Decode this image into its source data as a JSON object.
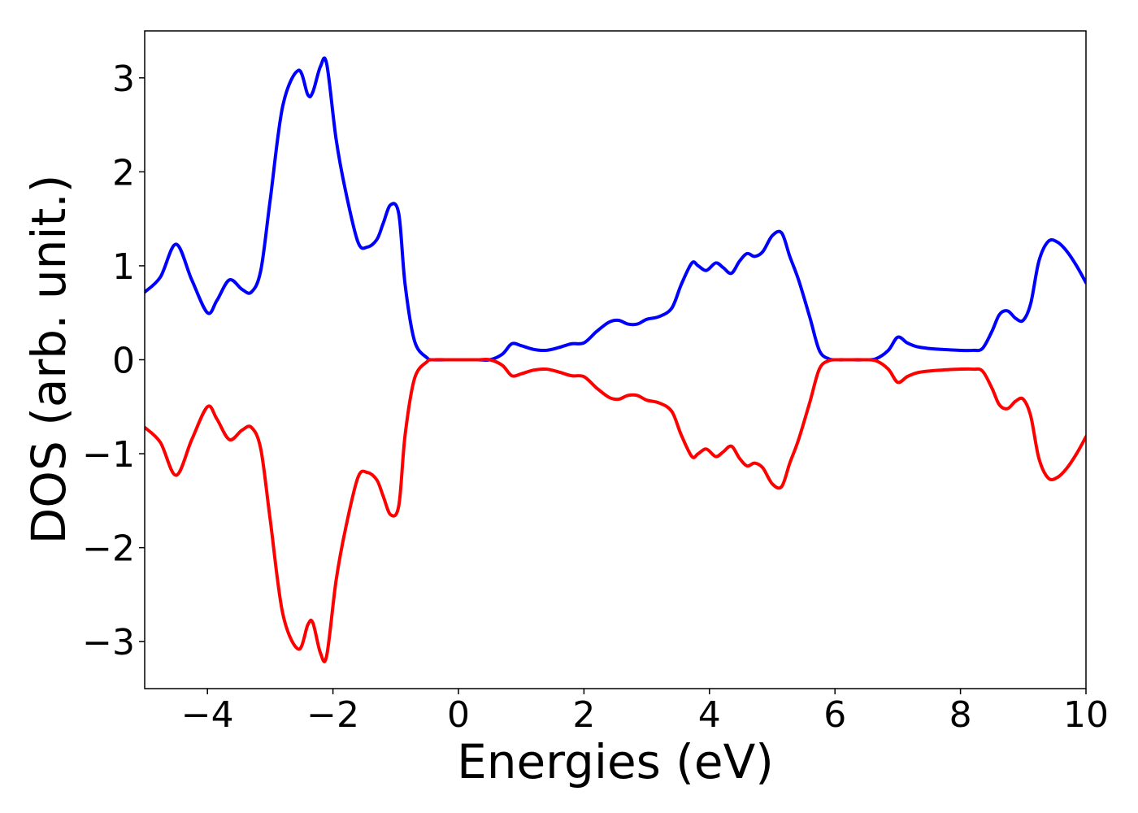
{
  "chart_data": {
    "type": "line",
    "title": "",
    "xlabel": "Energies (eV)",
    "ylabel": "DOS (arb. unit.)",
    "xlim": [
      -5,
      10
    ],
    "ylim": [
      -3.5,
      3.5
    ],
    "xticks": [
      -4,
      -2,
      0,
      2,
      4,
      6,
      8,
      10
    ],
    "xtick_labels": [
      "−4",
      "−2",
      "0",
      "2",
      "4",
      "6",
      "8",
      "10"
    ],
    "yticks": [
      -3,
      -2,
      -1,
      0,
      1,
      2,
      3
    ],
    "ytick_labels": [
      "−3",
      "−2",
      "−1",
      "0",
      "1",
      "2",
      "3"
    ],
    "grid": false,
    "legend": "none",
    "series": [
      {
        "color": "#0000ff",
        "x": [
          -5.0,
          -4.75,
          -4.5,
          -4.25,
          -4.0,
          -3.85,
          -3.65,
          -3.45,
          -3.3,
          -3.15,
          -3.0,
          -2.8,
          -2.55,
          -2.4,
          -2.32,
          -2.2,
          -2.1,
          -1.95,
          -1.8,
          -1.6,
          -1.45,
          -1.3,
          -1.2,
          -1.08,
          -0.95,
          -0.85,
          -0.7,
          -0.5,
          -0.4,
          -0.2,
          0.0,
          0.3,
          0.5,
          0.7,
          0.85,
          1.0,
          1.2,
          1.4,
          1.6,
          1.8,
          2.0,
          2.2,
          2.4,
          2.55,
          2.7,
          2.85,
          3.0,
          3.2,
          3.4,
          3.55,
          3.72,
          3.82,
          3.95,
          4.1,
          4.22,
          4.35,
          4.48,
          4.6,
          4.72,
          4.85,
          5.0,
          5.15,
          5.28,
          5.42,
          5.6,
          5.75,
          5.9,
          6.05,
          6.2,
          6.45,
          6.65,
          6.85,
          7.0,
          7.15,
          7.3,
          7.5,
          7.7,
          8.0,
          8.2,
          8.35,
          8.5,
          8.62,
          8.75,
          8.88,
          9.0,
          9.12,
          9.25,
          9.4,
          9.55,
          9.7,
          9.85,
          10.0
        ],
        "y": [
          0.72,
          0.88,
          1.23,
          0.85,
          0.5,
          0.63,
          0.85,
          0.75,
          0.72,
          0.95,
          1.7,
          2.7,
          3.08,
          2.82,
          2.85,
          3.12,
          3.15,
          2.35,
          1.8,
          1.25,
          1.2,
          1.28,
          1.45,
          1.65,
          1.55,
          0.8,
          0.2,
          0.02,
          0.0,
          0.0,
          0.0,
          0.0,
          0.0,
          0.06,
          0.17,
          0.15,
          0.11,
          0.1,
          0.13,
          0.17,
          0.18,
          0.3,
          0.4,
          0.42,
          0.38,
          0.38,
          0.43,
          0.46,
          0.55,
          0.8,
          1.03,
          1.0,
          0.95,
          1.03,
          0.98,
          0.92,
          1.05,
          1.13,
          1.1,
          1.15,
          1.32,
          1.35,
          1.1,
          0.85,
          0.45,
          0.1,
          0.01,
          0.0,
          0.0,
          0.0,
          0.01,
          0.1,
          0.24,
          0.18,
          0.14,
          0.12,
          0.11,
          0.1,
          0.1,
          0.12,
          0.3,
          0.48,
          0.52,
          0.44,
          0.42,
          0.6,
          1.05,
          1.26,
          1.25,
          1.15,
          1.0,
          0.82
        ]
      },
      {
        "color": "#ff0000",
        "x": [
          -5.0,
          -4.75,
          -4.5,
          -4.25,
          -4.0,
          -3.85,
          -3.65,
          -3.45,
          -3.3,
          -3.15,
          -3.0,
          -2.8,
          -2.55,
          -2.4,
          -2.32,
          -2.2,
          -2.1,
          -1.95,
          -1.8,
          -1.6,
          -1.45,
          -1.3,
          -1.2,
          -1.08,
          -0.95,
          -0.85,
          -0.7,
          -0.5,
          -0.4,
          -0.2,
          0.0,
          0.3,
          0.5,
          0.7,
          0.85,
          1.0,
          1.2,
          1.4,
          1.6,
          1.8,
          2.0,
          2.2,
          2.4,
          2.55,
          2.7,
          2.85,
          3.0,
          3.2,
          3.4,
          3.55,
          3.72,
          3.82,
          3.95,
          4.1,
          4.22,
          4.35,
          4.48,
          4.6,
          4.72,
          4.85,
          5.0,
          5.15,
          5.28,
          5.42,
          5.6,
          5.75,
          5.9,
          6.05,
          6.2,
          6.45,
          6.65,
          6.85,
          7.0,
          7.15,
          7.3,
          7.5,
          7.7,
          8.0,
          8.2,
          8.35,
          8.5,
          8.62,
          8.75,
          8.88,
          9.0,
          9.12,
          9.25,
          9.4,
          9.55,
          9.7,
          9.85,
          10.0
        ],
        "y": [
          -0.72,
          -0.88,
          -1.23,
          -0.85,
          -0.5,
          -0.63,
          -0.85,
          -0.75,
          -0.72,
          -0.95,
          -1.7,
          -2.7,
          -3.08,
          -2.82,
          -2.8,
          -3.12,
          -3.15,
          -2.35,
          -1.8,
          -1.25,
          -1.2,
          -1.28,
          -1.45,
          -1.65,
          -1.55,
          -0.8,
          -0.2,
          -0.02,
          0.0,
          0.0,
          0.0,
          0.0,
          0.0,
          -0.06,
          -0.17,
          -0.15,
          -0.11,
          -0.1,
          -0.13,
          -0.17,
          -0.18,
          -0.3,
          -0.4,
          -0.42,
          -0.38,
          -0.38,
          -0.43,
          -0.46,
          -0.55,
          -0.8,
          -1.03,
          -1.0,
          -0.95,
          -1.03,
          -0.98,
          -0.92,
          -1.05,
          -1.13,
          -1.1,
          -1.15,
          -1.32,
          -1.35,
          -1.1,
          -0.85,
          -0.45,
          -0.1,
          -0.01,
          0.0,
          0.0,
          0.0,
          -0.01,
          -0.1,
          -0.24,
          -0.18,
          -0.14,
          -0.12,
          -0.11,
          -0.1,
          -0.1,
          -0.12,
          -0.3,
          -0.48,
          -0.52,
          -0.44,
          -0.42,
          -0.6,
          -1.05,
          -1.26,
          -1.25,
          -1.15,
          -1.0,
          -0.82
        ]
      }
    ]
  }
}
